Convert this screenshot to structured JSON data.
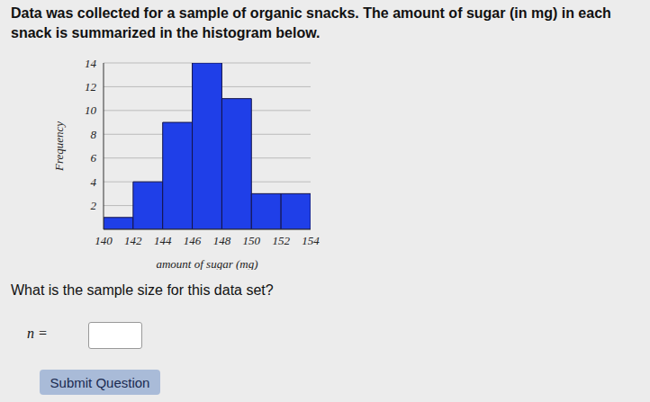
{
  "header": {
    "text": "Data was collected for a sample of organic snacks. The amount of sugar (in mg) in each snack is summarized in the histogram below."
  },
  "chart_data": {
    "type": "histogram",
    "bins": [
      140,
      142,
      144,
      146,
      148,
      150,
      152,
      154
    ],
    "counts": [
      1,
      4,
      9,
      14,
      11,
      3,
      3
    ],
    "x_label": "amount of sugar (mg)",
    "y_label": "Frequency",
    "xlim": [
      140,
      154
    ],
    "xticks": [
      140,
      142,
      144,
      146,
      148,
      150,
      152,
      154
    ],
    "ylim": [
      0,
      14
    ],
    "yticks": [
      2,
      4,
      6,
      8,
      10,
      12,
      14
    ],
    "grid": true,
    "color": "#1f3fe8"
  },
  "question": {
    "text": "What is the sample size for this data set?",
    "input_label": "n ="
  },
  "button": {
    "label": "Submit Question"
  }
}
